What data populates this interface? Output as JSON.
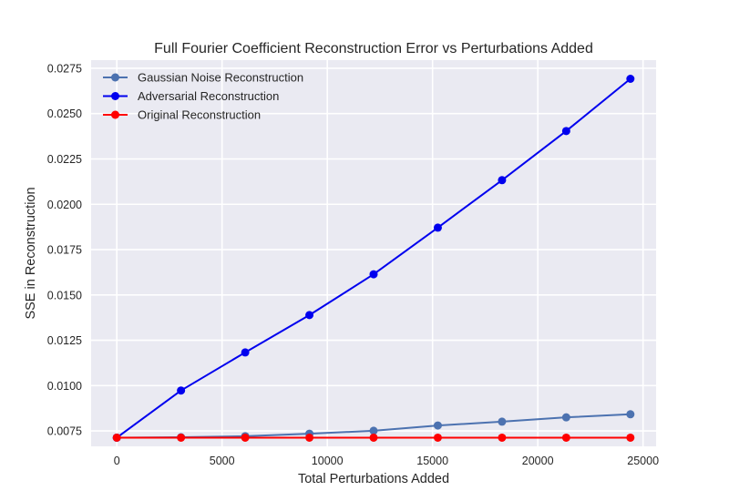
{
  "chart_data": {
    "type": "line",
    "title": "Full Fourier Coefficient Reconstruction Error vs Perturbations Added",
    "xlabel": "Total Perturbations Added",
    "ylabel": "SSE in Reconstruction",
    "xlim": [
      -1220,
      25620
    ],
    "ylim": [
      0.00665,
      0.02795
    ],
    "x_ticks": [
      0,
      5000,
      10000,
      15000,
      20000,
      25000
    ],
    "x_tick_labels": [
      "0",
      "5000",
      "10000",
      "15000",
      "20000",
      "25000"
    ],
    "y_ticks": [
      0.0075,
      0.01,
      0.0125,
      0.015,
      0.0175,
      0.02,
      0.0225,
      0.025,
      0.0275
    ],
    "y_tick_labels": [
      "0.0075",
      "0.0100",
      "0.0125",
      "0.0150",
      "0.0175",
      "0.0200",
      "0.0225",
      "0.0250",
      "0.0275"
    ],
    "grid": true,
    "legend_position": "top-left",
    "x": [
      0,
      3050,
      6100,
      9150,
      12200,
      15250,
      18300,
      21350,
      24400
    ],
    "series": [
      {
        "name": "Gaussian Noise Reconstruction",
        "color": "#4c72b0",
        "values": [
          0.00713,
          0.00715,
          0.00721,
          0.00735,
          0.00751,
          0.0078,
          0.00801,
          0.00825,
          0.00842
        ]
      },
      {
        "name": "Adversarial Reconstruction",
        "color": "#0000ee",
        "values": [
          0.00713,
          0.00973,
          0.01183,
          0.01389,
          0.01614,
          0.01871,
          0.02133,
          0.02404,
          0.02692
        ]
      },
      {
        "name": "Original Reconstruction",
        "color": "#ff0000",
        "values": [
          0.00713,
          0.00713,
          0.00713,
          0.00713,
          0.00713,
          0.00713,
          0.00713,
          0.00713,
          0.00713
        ]
      }
    ]
  }
}
